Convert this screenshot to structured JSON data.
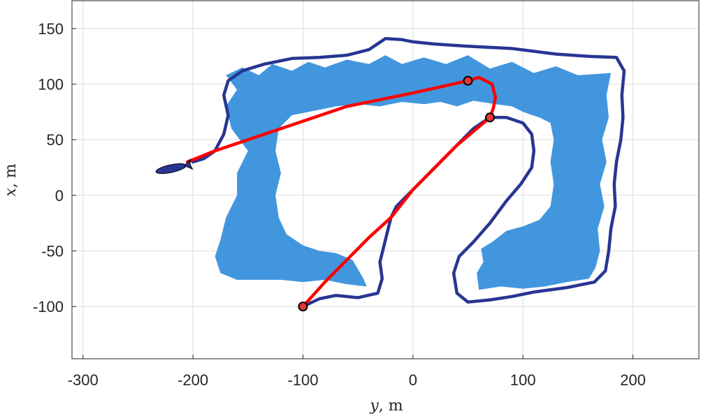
{
  "chart_data": {
    "type": "line",
    "title": "",
    "xlabel": {
      "symbol": "y",
      "unit": ", m"
    },
    "ylabel": {
      "symbol": "x",
      "unit": ", m"
    },
    "xlim": [
      -310,
      260
    ],
    "ylim": [
      -147,
      175
    ],
    "xticks": [
      -300,
      -200,
      -100,
      0,
      100,
      200
    ],
    "yticks": [
      -100,
      -50,
      0,
      50,
      100,
      150
    ],
    "grid": true,
    "colors": {
      "region": "#4296DE",
      "boundary": "#283593",
      "path": "#FF0000",
      "waypoint_fill": "#E53935",
      "vehicle": "#283593"
    },
    "region_outer": [
      [
        -170,
        108
      ],
      [
        -155,
        115
      ],
      [
        -140,
        108
      ],
      [
        -128,
        118
      ],
      [
        -110,
        112
      ],
      [
        -95,
        120
      ],
      [
        -80,
        115
      ],
      [
        -60,
        122
      ],
      [
        -40,
        118
      ],
      [
        -25,
        126
      ],
      [
        -10,
        118
      ],
      [
        10,
        124
      ],
      [
        30,
        118
      ],
      [
        50,
        126
      ],
      [
        70,
        114
      ],
      [
        90,
        120
      ],
      [
        110,
        110
      ],
      [
        130,
        116
      ],
      [
        150,
        108
      ],
      [
        180,
        110
      ],
      [
        176,
        90
      ],
      [
        178,
        70
      ],
      [
        172,
        50
      ],
      [
        176,
        30
      ],
      [
        170,
        10
      ],
      [
        174,
        -10
      ],
      [
        168,
        -30
      ],
      [
        170,
        -50
      ],
      [
        166,
        -65
      ],
      [
        160,
        -75
      ],
      [
        140,
        -78
      ],
      [
        120,
        -82
      ],
      [
        100,
        -84
      ],
      [
        80,
        -82
      ],
      [
        60,
        -85
      ],
      [
        58,
        -70
      ],
      [
        64,
        -60
      ],
      [
        62,
        -48
      ],
      [
        72,
        -42
      ],
      [
        85,
        -32
      ],
      [
        100,
        -28
      ],
      [
        115,
        -22
      ],
      [
        125,
        -10
      ],
      [
        128,
        10
      ],
      [
        125,
        30
      ],
      [
        128,
        50
      ],
      [
        125,
        65
      ],
      [
        115,
        70
      ],
      [
        100,
        75
      ],
      [
        90,
        80
      ],
      [
        75,
        82
      ],
      [
        55,
        85
      ],
      [
        40,
        80
      ],
      [
        25,
        84
      ],
      [
        10,
        82
      ],
      [
        -10,
        84
      ],
      [
        -30,
        80
      ],
      [
        -50,
        82
      ],
      [
        -70,
        80
      ],
      [
        -90,
        76
      ],
      [
        -110,
        72
      ],
      [
        -122,
        60
      ],
      [
        -125,
        40
      ],
      [
        -120,
        20
      ],
      [
        -125,
        0
      ],
      [
        -122,
        -20
      ],
      [
        -115,
        -35
      ],
      [
        -100,
        -45
      ],
      [
        -85,
        -50
      ],
      [
        -70,
        -52
      ],
      [
        -55,
        -58
      ],
      [
        -45,
        -75
      ],
      [
        -42,
        -82
      ],
      [
        -60,
        -80
      ],
      [
        -80,
        -76
      ],
      [
        -100,
        -78
      ],
      [
        -120,
        -76
      ],
      [
        -140,
        -76
      ],
      [
        -160,
        -76
      ],
      [
        -175,
        -70
      ],
      [
        -180,
        -55
      ],
      [
        -175,
        -40
      ],
      [
        -170,
        -20
      ],
      [
        -160,
        0
      ],
      [
        -160,
        20
      ],
      [
        -150,
        40
      ],
      [
        -165,
        60
      ],
      [
        -170,
        80
      ],
      [
        -160,
        95
      ]
    ],
    "boundary": [
      [
        -200,
        30
      ],
      [
        -190,
        33
      ],
      [
        -180,
        40
      ],
      [
        -172,
        55
      ],
      [
        -168,
        72
      ],
      [
        -172,
        90
      ],
      [
        -168,
        103
      ],
      [
        -155,
        112
      ],
      [
        -135,
        118
      ],
      [
        -110,
        123
      ],
      [
        -85,
        124
      ],
      [
        -60,
        126
      ],
      [
        -40,
        131
      ],
      [
        -25,
        141
      ],
      [
        -10,
        140
      ],
      [
        0,
        138
      ],
      [
        20,
        136
      ],
      [
        50,
        134
      ],
      [
        90,
        132
      ],
      [
        130,
        127
      ],
      [
        160,
        125
      ],
      [
        185,
        124
      ],
      [
        192,
        112
      ],
      [
        190,
        90
      ],
      [
        191,
        70
      ],
      [
        189,
        50
      ],
      [
        185,
        30
      ],
      [
        183,
        10
      ],
      [
        184,
        -10
      ],
      [
        180,
        -30
      ],
      [
        178,
        -50
      ],
      [
        175,
        -68
      ],
      [
        165,
        -78
      ],
      [
        140,
        -83
      ],
      [
        110,
        -87
      ],
      [
        90,
        -91
      ],
      [
        70,
        -94
      ],
      [
        50,
        -96
      ],
      [
        40,
        -88
      ],
      [
        37,
        -70
      ],
      [
        42,
        -55
      ],
      [
        55,
        -42
      ],
      [
        70,
        -25
      ],
      [
        85,
        -5
      ],
      [
        98,
        10
      ],
      [
        108,
        25
      ],
      [
        110,
        40
      ],
      [
        108,
        55
      ],
      [
        100,
        65
      ],
      [
        85,
        70
      ],
      [
        70,
        70
      ],
      [
        55,
        60
      ],
      [
        40,
        45
      ],
      [
        20,
        25
      ],
      [
        0,
        5
      ],
      [
        -15,
        -10
      ],
      [
        -20,
        -20
      ],
      [
        -25,
        -40
      ],
      [
        -30,
        -60
      ],
      [
        -28,
        -75
      ],
      [
        -32,
        -88
      ],
      [
        -50,
        -92
      ],
      [
        -70,
        -90
      ],
      [
        -85,
        -93
      ],
      [
        -100,
        -100
      ]
    ],
    "red_path": [
      [
        -205,
        30
      ],
      [
        -180,
        40
      ],
      [
        -120,
        60
      ],
      [
        -60,
        80
      ],
      [
        0,
        92
      ],
      [
        50,
        103
      ],
      [
        60,
        106
      ],
      [
        72,
        100
      ],
      [
        75,
        88
      ],
      [
        73,
        78
      ],
      [
        70,
        70
      ],
      [
        40,
        45
      ],
      [
        0,
        5
      ],
      [
        -20,
        -20
      ],
      [
        -40,
        -38
      ],
      [
        -60,
        -58
      ],
      [
        -80,
        -78
      ],
      [
        -100,
        -100
      ]
    ],
    "waypoints": [
      [
        50,
        103
      ],
      [
        70,
        70
      ],
      [
        -100,
        -100
      ]
    ],
    "vehicle": {
      "y": -220,
      "x": 24
    }
  }
}
